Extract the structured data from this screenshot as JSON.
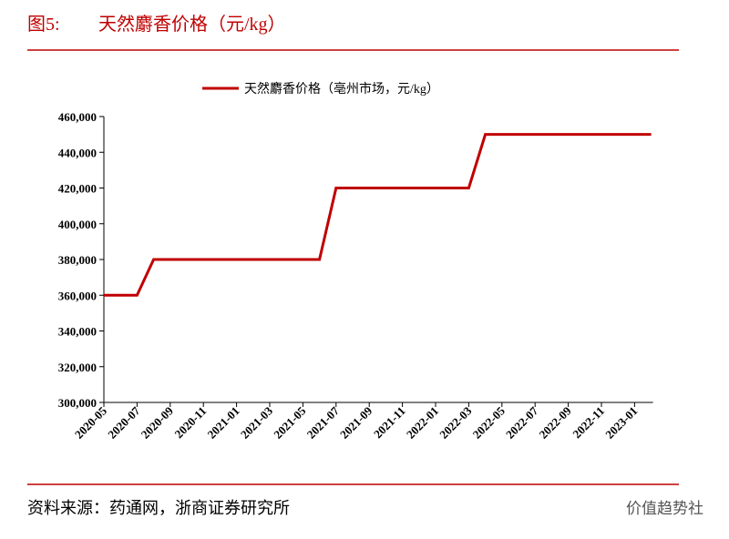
{
  "header": {
    "figure": "图5:",
    "title": "天然麝香价格（元/kg）"
  },
  "chart_data": {
    "type": "line",
    "categories": [
      "2020-05",
      null,
      "2020-07",
      null,
      "2020-09",
      null,
      "2020-11",
      null,
      "2021-01",
      null,
      "2021-03",
      null,
      "2021-05",
      null,
      "2021-07",
      null,
      "2021-09",
      null,
      "2021-11",
      null,
      "2022-01",
      null,
      "2022-03",
      null,
      "2022-05",
      null,
      "2022-07",
      null,
      "2022-09",
      null,
      "2022-11",
      null,
      "2023-01",
      null
    ],
    "series": [
      {
        "name": "天然麝香价格（亳州市场，元/kg）",
        "color": "#c00000",
        "values": [
          360000,
          360000,
          360000,
          380000,
          380000,
          380000,
          380000,
          380000,
          380000,
          380000,
          380000,
          380000,
          380000,
          380000,
          420000,
          420000,
          420000,
          420000,
          420000,
          420000,
          420000,
          420000,
          420000,
          450000,
          450000,
          450000,
          450000,
          450000,
          450000,
          450000,
          450000,
          450000,
          450000,
          450000
        ]
      }
    ],
    "ylim": [
      300000,
      460000
    ],
    "yticks": [
      {
        "value": 300000,
        "label": "300,000"
      },
      {
        "value": 320000,
        "label": "320,000"
      },
      {
        "value": 340000,
        "label": "340,000"
      },
      {
        "value": 360000,
        "label": "360,000"
      },
      {
        "value": 380000,
        "label": "380,000"
      },
      {
        "value": 400000,
        "label": "400,000"
      },
      {
        "value": 420000,
        "label": "420,000"
      },
      {
        "value": 440000,
        "label": "440,000"
      },
      {
        "value": 460000,
        "label": "460,000"
      }
    ],
    "legend": "top"
  },
  "footer": {
    "source": "资料来源：药通网，浙商证券研究所",
    "watermark": "价值趋势社"
  }
}
